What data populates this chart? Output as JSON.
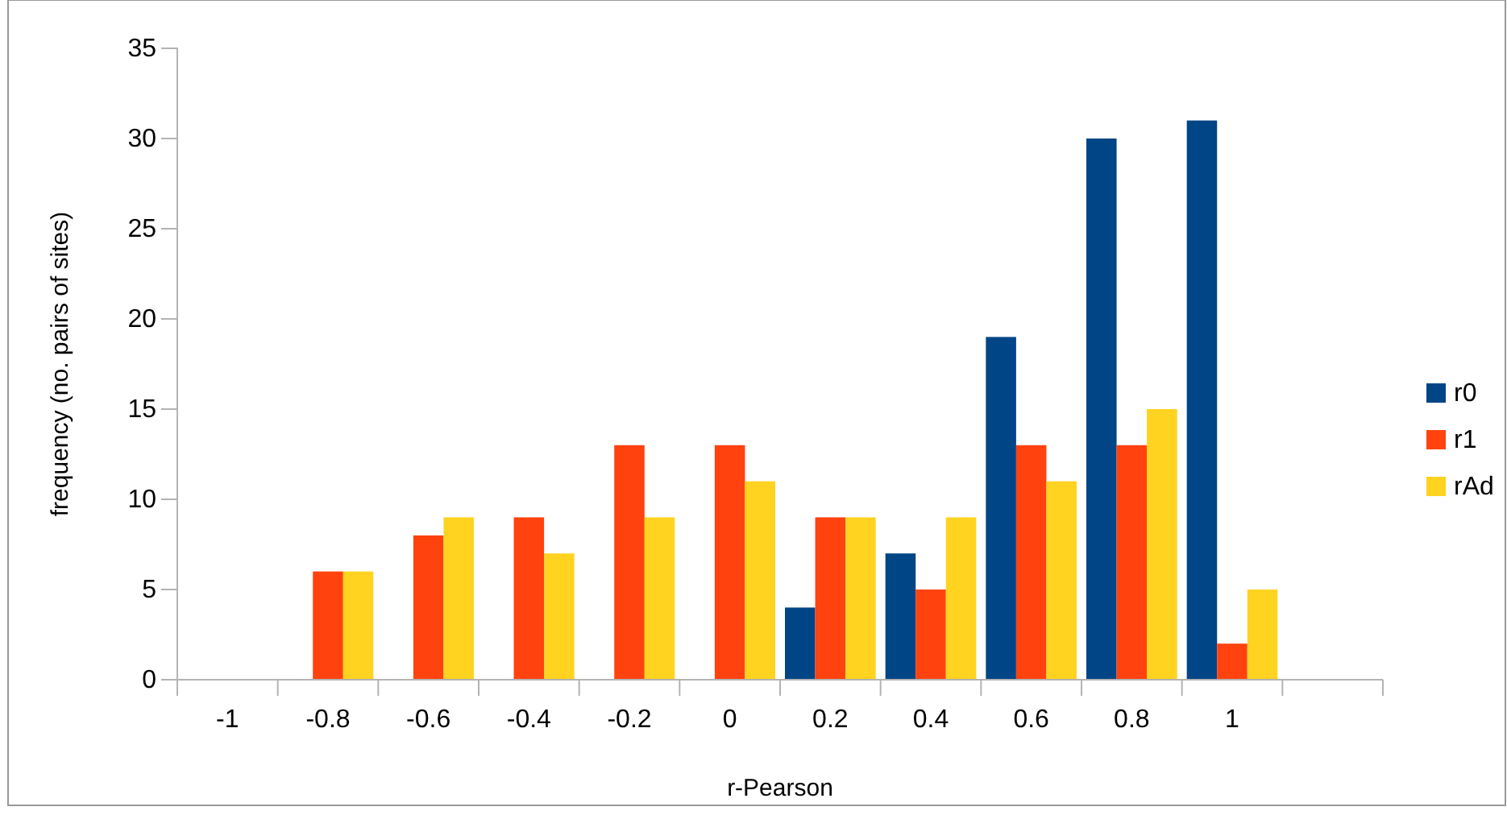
{
  "chart_data": {
    "type": "bar",
    "xlabel": "r-Pearson",
    "ylabel": "frequency (no. pairs of sites)",
    "categories": [
      "-1",
      "-0.8",
      "-0.6",
      "-0.4",
      "-0.2",
      "0",
      "0.2",
      "0.4",
      "0.6",
      "0.8",
      "1",
      null
    ],
    "series": [
      {
        "name": "r0",
        "color": "#004586",
        "values": [
          0,
          0,
          0,
          0,
          0,
          0,
          4,
          7,
          19,
          30,
          31,
          0
        ]
      },
      {
        "name": "r1",
        "color": "#ff420e",
        "values": [
          0,
          6,
          8,
          9,
          13,
          13,
          9,
          5,
          13,
          13,
          2,
          0
        ]
      },
      {
        "name": "rAd",
        "color": "#ffd320",
        "values": [
          0,
          6,
          9,
          7,
          9,
          11,
          9,
          9,
          11,
          15,
          5,
          0
        ]
      }
    ],
    "ylim": [
      0,
      35
    ],
    "yticks": [
      0,
      5,
      10,
      15,
      20,
      25,
      30,
      35
    ],
    "grid": false,
    "legend": "right"
  }
}
